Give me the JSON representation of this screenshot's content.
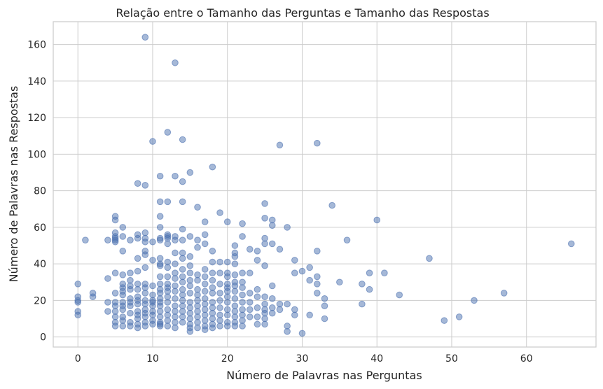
{
  "chart_data": {
    "type": "scatter",
    "title": "Relação entre o Tamanho das Perguntas e Tamanho das Respostas",
    "xlabel": "Número de Palavras nas Perguntas",
    "ylabel": "Número de Palavras nas Respostas",
    "xlim": [
      -3.3,
      69.3
    ],
    "ylim": [
      -5.5,
      172.5
    ],
    "xticks": [
      0,
      10,
      20,
      30,
      40,
      50,
      60
    ],
    "yticks": [
      0,
      20,
      40,
      60,
      80,
      100,
      120,
      140,
      160
    ],
    "grid": true,
    "color": "#4c72b0",
    "points": [
      [
        0,
        29
      ],
      [
        0,
        22
      ],
      [
        0,
        20
      ],
      [
        0,
        19
      ],
      [
        0,
        14
      ],
      [
        0,
        12
      ],
      [
        1,
        53
      ],
      [
        2,
        24
      ],
      [
        2,
        22
      ],
      [
        4,
        53
      ],
      [
        4,
        32
      ],
      [
        4,
        19
      ],
      [
        4,
        14
      ],
      [
        5,
        66
      ],
      [
        5,
        64
      ],
      [
        5,
        57
      ],
      [
        5,
        55
      ],
      [
        5,
        54
      ],
      [
        5,
        53
      ],
      [
        5,
        52
      ],
      [
        5,
        35
      ],
      [
        5,
        24
      ],
      [
        5,
        19
      ],
      [
        5,
        17
      ],
      [
        5,
        14
      ],
      [
        5,
        11
      ],
      [
        5,
        8
      ],
      [
        5,
        6
      ],
      [
        6,
        60
      ],
      [
        6,
        55
      ],
      [
        6,
        47
      ],
      [
        6,
        34
      ],
      [
        6,
        29
      ],
      [
        6,
        27
      ],
      [
        6,
        25
      ],
      [
        6,
        23
      ],
      [
        6,
        19
      ],
      [
        6,
        17
      ],
      [
        6,
        15
      ],
      [
        6,
        11
      ],
      [
        6,
        9
      ],
      [
        6,
        6
      ],
      [
        7,
        53
      ],
      [
        7,
        35
      ],
      [
        7,
        31
      ],
      [
        7,
        28
      ],
      [
        7,
        26
      ],
      [
        7,
        21
      ],
      [
        7,
        19
      ],
      [
        7,
        17
      ],
      [
        7,
        13
      ],
      [
        7,
        8
      ],
      [
        7,
        6
      ],
      [
        8,
        84
      ],
      [
        8,
        56
      ],
      [
        8,
        54
      ],
      [
        8,
        43
      ],
      [
        8,
        36
      ],
      [
        8,
        29
      ],
      [
        8,
        26
      ],
      [
        8,
        22
      ],
      [
        8,
        20
      ],
      [
        8,
        18
      ],
      [
        8,
        14
      ],
      [
        8,
        12
      ],
      [
        8,
        10
      ],
      [
        8,
        7
      ],
      [
        8,
        5
      ],
      [
        9,
        164
      ],
      [
        9,
        83
      ],
      [
        9,
        57
      ],
      [
        9,
        54
      ],
      [
        9,
        52
      ],
      [
        9,
        47
      ],
      [
        9,
        45
      ],
      [
        9,
        38
      ],
      [
        9,
        29
      ],
      [
        9,
        27
      ],
      [
        9,
        24
      ],
      [
        9,
        20
      ],
      [
        9,
        18
      ],
      [
        9,
        15
      ],
      [
        9,
        13
      ],
      [
        9,
        11
      ],
      [
        9,
        8
      ],
      [
        9,
        6
      ],
      [
        10,
        107
      ],
      [
        10,
        52
      ],
      [
        10,
        42
      ],
      [
        10,
        28
      ],
      [
        10,
        23
      ],
      [
        10,
        20
      ],
      [
        10,
        19
      ],
      [
        10,
        17
      ],
      [
        10,
        14
      ],
      [
        10,
        12
      ],
      [
        10,
        9
      ],
      [
        10,
        7
      ],
      [
        11,
        88
      ],
      [
        11,
        74
      ],
      [
        11,
        66
      ],
      [
        11,
        60
      ],
      [
        11,
        54
      ],
      [
        11,
        53
      ],
      [
        11,
        43
      ],
      [
        11,
        40
      ],
      [
        11,
        39
      ],
      [
        11,
        33
      ],
      [
        11,
        29
      ],
      [
        11,
        26
      ],
      [
        11,
        24
      ],
      [
        11,
        21
      ],
      [
        11,
        19
      ],
      [
        11,
        17
      ],
      [
        11,
        14
      ],
      [
        11,
        11
      ],
      [
        11,
        8
      ],
      [
        11,
        7
      ],
      [
        11,
        6
      ],
      [
        12,
        112
      ],
      [
        12,
        74
      ],
      [
        12,
        56
      ],
      [
        12,
        55
      ],
      [
        12,
        54
      ],
      [
        12,
        51
      ],
      [
        12,
        41
      ],
      [
        12,
        38
      ],
      [
        12,
        33
      ],
      [
        12,
        29
      ],
      [
        12,
        27
      ],
      [
        12,
        25
      ],
      [
        12,
        22
      ],
      [
        12,
        19
      ],
      [
        12,
        15
      ],
      [
        12,
        12
      ],
      [
        12,
        9
      ],
      [
        12,
        6
      ],
      [
        13,
        150
      ],
      [
        13,
        88
      ],
      [
        13,
        55
      ],
      [
        13,
        53
      ],
      [
        13,
        46
      ],
      [
        13,
        40
      ],
      [
        13,
        35
      ],
      [
        13,
        32
      ],
      [
        13,
        28
      ],
      [
        13,
        25
      ],
      [
        13,
        21
      ],
      [
        13,
        17
      ],
      [
        13,
        14
      ],
      [
        13,
        11
      ],
      [
        13,
        8
      ],
      [
        13,
        5
      ],
      [
        14,
        108
      ],
      [
        14,
        85
      ],
      [
        14,
        74
      ],
      [
        14,
        59
      ],
      [
        14,
        53
      ],
      [
        14,
        46
      ],
      [
        14,
        43
      ],
      [
        14,
        37
      ],
      [
        14,
        33
      ],
      [
        14,
        30
      ],
      [
        14,
        26
      ],
      [
        14,
        23
      ],
      [
        14,
        20
      ],
      [
        14,
        17
      ],
      [
        14,
        14
      ],
      [
        14,
        11
      ],
      [
        14,
        8
      ],
      [
        15,
        90
      ],
      [
        15,
        55
      ],
      [
        15,
        44
      ],
      [
        15,
        39
      ],
      [
        15,
        35
      ],
      [
        15,
        31
      ],
      [
        15,
        28
      ],
      [
        15,
        24
      ],
      [
        15,
        19
      ],
      [
        15,
        16
      ],
      [
        15,
        13
      ],
      [
        15,
        10
      ],
      [
        15,
        7
      ],
      [
        15,
        5
      ],
      [
        15,
        3
      ],
      [
        16,
        71
      ],
      [
        16,
        53
      ],
      [
        16,
        49
      ],
      [
        16,
        34
      ],
      [
        16,
        31
      ],
      [
        16,
        26
      ],
      [
        16,
        23
      ],
      [
        16,
        20
      ],
      [
        16,
        17
      ],
      [
        16,
        14
      ],
      [
        16,
        11
      ],
      [
        16,
        8
      ],
      [
        16,
        5
      ],
      [
        17,
        63
      ],
      [
        17,
        56
      ],
      [
        17,
        51
      ],
      [
        17,
        37
      ],
      [
        17,
        33
      ],
      [
        17,
        29
      ],
      [
        17,
        25
      ],
      [
        17,
        21
      ],
      [
        17,
        18
      ],
      [
        17,
        15
      ],
      [
        17,
        12
      ],
      [
        17,
        9
      ],
      [
        17,
        6
      ],
      [
        17,
        4
      ],
      [
        18,
        93
      ],
      [
        18,
        47
      ],
      [
        18,
        41
      ],
      [
        18,
        35
      ],
      [
        18,
        31
      ],
      [
        18,
        27
      ],
      [
        18,
        24
      ],
      [
        18,
        19
      ],
      [
        18,
        16
      ],
      [
        18,
        13
      ],
      [
        18,
        10
      ],
      [
        18,
        7
      ],
      [
        18,
        5
      ],
      [
        19,
        68
      ],
      [
        19,
        41
      ],
      [
        19,
        35
      ],
      [
        19,
        29
      ],
      [
        19,
        24
      ],
      [
        19,
        20
      ],
      [
        19,
        16
      ],
      [
        19,
        12
      ],
      [
        19,
        9
      ],
      [
        19,
        6
      ],
      [
        20,
        63
      ],
      [
        20,
        41
      ],
      [
        20,
        35
      ],
      [
        20,
        33
      ],
      [
        20,
        29
      ],
      [
        20,
        27
      ],
      [
        20,
        25
      ],
      [
        20,
        22
      ],
      [
        20,
        19
      ],
      [
        20,
        15
      ],
      [
        20,
        12
      ],
      [
        20,
        8
      ],
      [
        20,
        6
      ],
      [
        21,
        50
      ],
      [
        21,
        46
      ],
      [
        21,
        44
      ],
      [
        21,
        40
      ],
      [
        21,
        34
      ],
      [
        21,
        30
      ],
      [
        21,
        28
      ],
      [
        21,
        25
      ],
      [
        21,
        21
      ],
      [
        21,
        17
      ],
      [
        21,
        14
      ],
      [
        21,
        11
      ],
      [
        21,
        8
      ],
      [
        21,
        6
      ],
      [
        22,
        62
      ],
      [
        22,
        55
      ],
      [
        22,
        35
      ],
      [
        22,
        30
      ],
      [
        22,
        27
      ],
      [
        22,
        23
      ],
      [
        22,
        19
      ],
      [
        22,
        15
      ],
      [
        22,
        12
      ],
      [
        22,
        9
      ],
      [
        22,
        6
      ],
      [
        23,
        48
      ],
      [
        23,
        35
      ],
      [
        23,
        24
      ],
      [
        23,
        19
      ],
      [
        23,
        15
      ],
      [
        23,
        11
      ],
      [
        24,
        47
      ],
      [
        24,
        42
      ],
      [
        24,
        26
      ],
      [
        24,
        22
      ],
      [
        24,
        16
      ],
      [
        24,
        11
      ],
      [
        24,
        7
      ],
      [
        25,
        73
      ],
      [
        25,
        65
      ],
      [
        25,
        54
      ],
      [
        25,
        51
      ],
      [
        25,
        39
      ],
      [
        25,
        22
      ],
      [
        25,
        18
      ],
      [
        25,
        15
      ],
      [
        25,
        13
      ],
      [
        25,
        10
      ],
      [
        25,
        7
      ],
      [
        26,
        64
      ],
      [
        26,
        61
      ],
      [
        26,
        51
      ],
      [
        26,
        28
      ],
      [
        26,
        21
      ],
      [
        26,
        16
      ],
      [
        26,
        13
      ],
      [
        27,
        105
      ],
      [
        27,
        48
      ],
      [
        27,
        18
      ],
      [
        27,
        15
      ],
      [
        28,
        60
      ],
      [
        28,
        18
      ],
      [
        28,
        6
      ],
      [
        28,
        3
      ],
      [
        29,
        42
      ],
      [
        29,
        35
      ],
      [
        29,
        15
      ],
      [
        29,
        12
      ],
      [
        30,
        36
      ],
      [
        30,
        2
      ],
      [
        31,
        38
      ],
      [
        31,
        31
      ],
      [
        31,
        12
      ],
      [
        32,
        106
      ],
      [
        32,
        47
      ],
      [
        32,
        33
      ],
      [
        32,
        29
      ],
      [
        32,
        24
      ],
      [
        33,
        21
      ],
      [
        33,
        17
      ],
      [
        33,
        10
      ],
      [
        34,
        72
      ],
      [
        35,
        30
      ],
      [
        36,
        53
      ],
      [
        38,
        29
      ],
      [
        38,
        18
      ],
      [
        39,
        35
      ],
      [
        39,
        26
      ],
      [
        40,
        64
      ],
      [
        41,
        35
      ],
      [
        43,
        23
      ],
      [
        47,
        43
      ],
      [
        49,
        9
      ],
      [
        51,
        11
      ],
      [
        53,
        20
      ],
      [
        57,
        24
      ],
      [
        66,
        51
      ]
    ]
  }
}
